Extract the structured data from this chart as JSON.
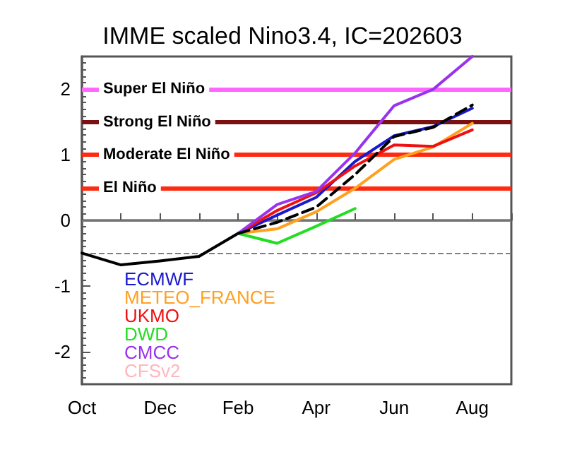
{
  "chart_data": {
    "type": "line",
    "title": "IMME scaled Nino3.4, IC=202603",
    "categories": [
      "Oct",
      null,
      "Dec",
      null,
      "Feb",
      null,
      "Apr",
      null,
      "Jun",
      null,
      "Aug",
      null
    ],
    "series": [
      {
        "color": "#000000",
        "values": [
          -0.5,
          -0.68,
          -0.62,
          -0.55,
          -0.2,
          null,
          null,
          null,
          null,
          null,
          null,
          null
        ]
      },
      {
        "name": "ECMWF",
        "color": "#1a1acc",
        "values": [
          null,
          null,
          null,
          null,
          -0.2,
          0.08,
          0.35,
          0.9,
          1.29,
          1.43,
          1.71,
          null
        ]
      },
      {
        "name": "METEO_FRANCE",
        "color": "#ffa020",
        "values": [
          null,
          null,
          null,
          null,
          -0.2,
          -0.13,
          0.13,
          0.49,
          0.93,
          1.12,
          1.48,
          null
        ]
      },
      {
        "name": "UKMO",
        "color": "#ee1111",
        "values": [
          null,
          null,
          null,
          null,
          -0.2,
          0.15,
          0.42,
          0.83,
          1.15,
          1.13,
          1.38,
          null
        ]
      },
      {
        "name": "DWD",
        "color": "#22dd22",
        "values": [
          null,
          null,
          null,
          null,
          -0.2,
          -0.35,
          -0.09,
          0.18,
          null,
          null,
          null,
          null
        ]
      },
      {
        "name": "CMCC",
        "color": "#9933ee",
        "values": [
          null,
          null,
          null,
          null,
          -0.2,
          0.24,
          0.44,
          1.03,
          1.75,
          2.0,
          2.5,
          null
        ]
      },
      {
        "name": "CFSv2",
        "color": "#ffb6c1",
        "values": [
          null,
          null,
          null,
          null,
          null,
          null,
          null,
          null,
          null,
          null,
          null,
          null
        ]
      },
      {
        "color": "#000000",
        "line_style": "dashed",
        "values": [
          null,
          null,
          null,
          null,
          -0.2,
          -0.03,
          0.2,
          0.7,
          1.28,
          1.42,
          1.76,
          null
        ]
      }
    ],
    "ylim": [
      -2.5,
      2.5
    ],
    "yticks": [
      -2,
      -1,
      0,
      1,
      2
    ],
    "ref_lines": [
      {
        "axis": "y",
        "value": 2,
        "label": "Super El Niño",
        "color": "#ff66ff"
      },
      {
        "axis": "y",
        "value": 1.5,
        "label": "Strong El Niño",
        "color": "#7a1010"
      },
      {
        "axis": "y",
        "value": 1,
        "label": "Moderate El Niño",
        "color": "#ff2a10"
      },
      {
        "axis": "y",
        "value": 0.5,
        "label": "El Niño",
        "color": "#ff2a10"
      },
      {
        "axis": "y",
        "value": 0,
        "color": "#808080"
      },
      {
        "axis": "y",
        "value": -0.5,
        "color": "#808080",
        "line_style": "dashed"
      }
    ],
    "legend": "left",
    "grid": false,
    "marker": "none",
    "line_style": "solid"
  }
}
